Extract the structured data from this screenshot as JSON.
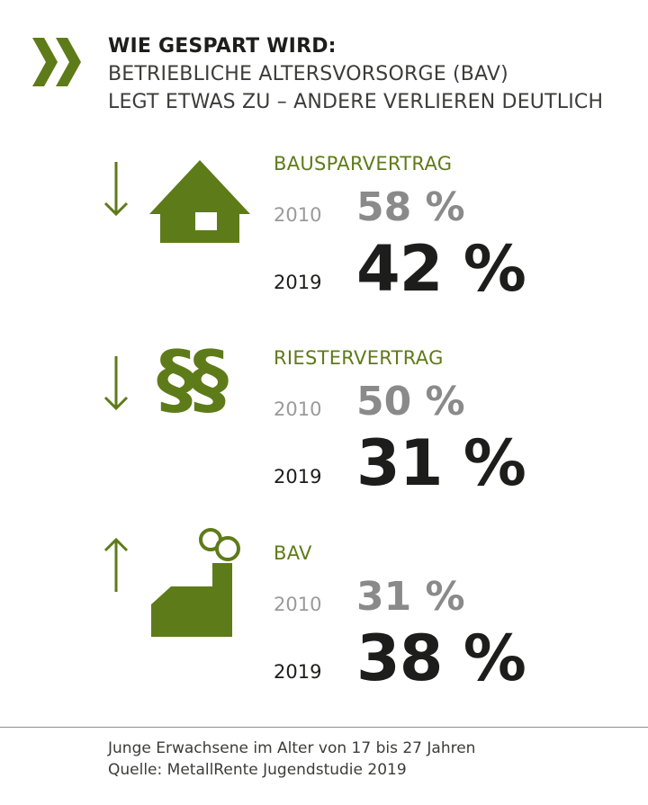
{
  "header": {
    "title": "WIE GESPART WIRD:",
    "line2": "BETRIEBLICHE ALTERSVORSORGE (BAV)",
    "line3": "LEGT ETWAS ZU – ANDERE VERLIEREN DEUTLICH"
  },
  "colors": {
    "accent": "#5e7b19",
    "text": "#1d1d1b",
    "muted": "#8a8a8a"
  },
  "sections": [
    {
      "label": "BAUSPARVERTRAG",
      "icon": "house-icon",
      "trend": "down",
      "y2010": "2010",
      "v2010": "58 %",
      "y2019": "2019",
      "v2019": "42 %"
    },
    {
      "label": "RIESTERVERTRAG",
      "icon": "paragraph-icon",
      "glyph": "§§",
      "trend": "down",
      "y2010": "2010",
      "v2010": "50 %",
      "y2019": "2019",
      "v2019": "31 %"
    },
    {
      "label": "BAV",
      "icon": "factory-icon",
      "trend": "up",
      "y2010": "2010",
      "v2010": "31 %",
      "y2019": "2019",
      "v2019": "38 %"
    }
  ],
  "chart_data": {
    "type": "table",
    "title": "WIE GESPART WIRD:",
    "categories": [
      "BAUSPARVERTRAG",
      "RIESTERVERTRAG",
      "BAV"
    ],
    "series": [
      {
        "name": "2010",
        "values": [
          58,
          50,
          31
        ]
      },
      {
        "name": "2019",
        "values": [
          42,
          31,
          38
        ]
      }
    ]
  },
  "footer": {
    "note": "Junge Erwachsene im Alter von 17 bis 27 Jahren",
    "source": "Quelle: MetallRente Jugendstudie 2019"
  }
}
